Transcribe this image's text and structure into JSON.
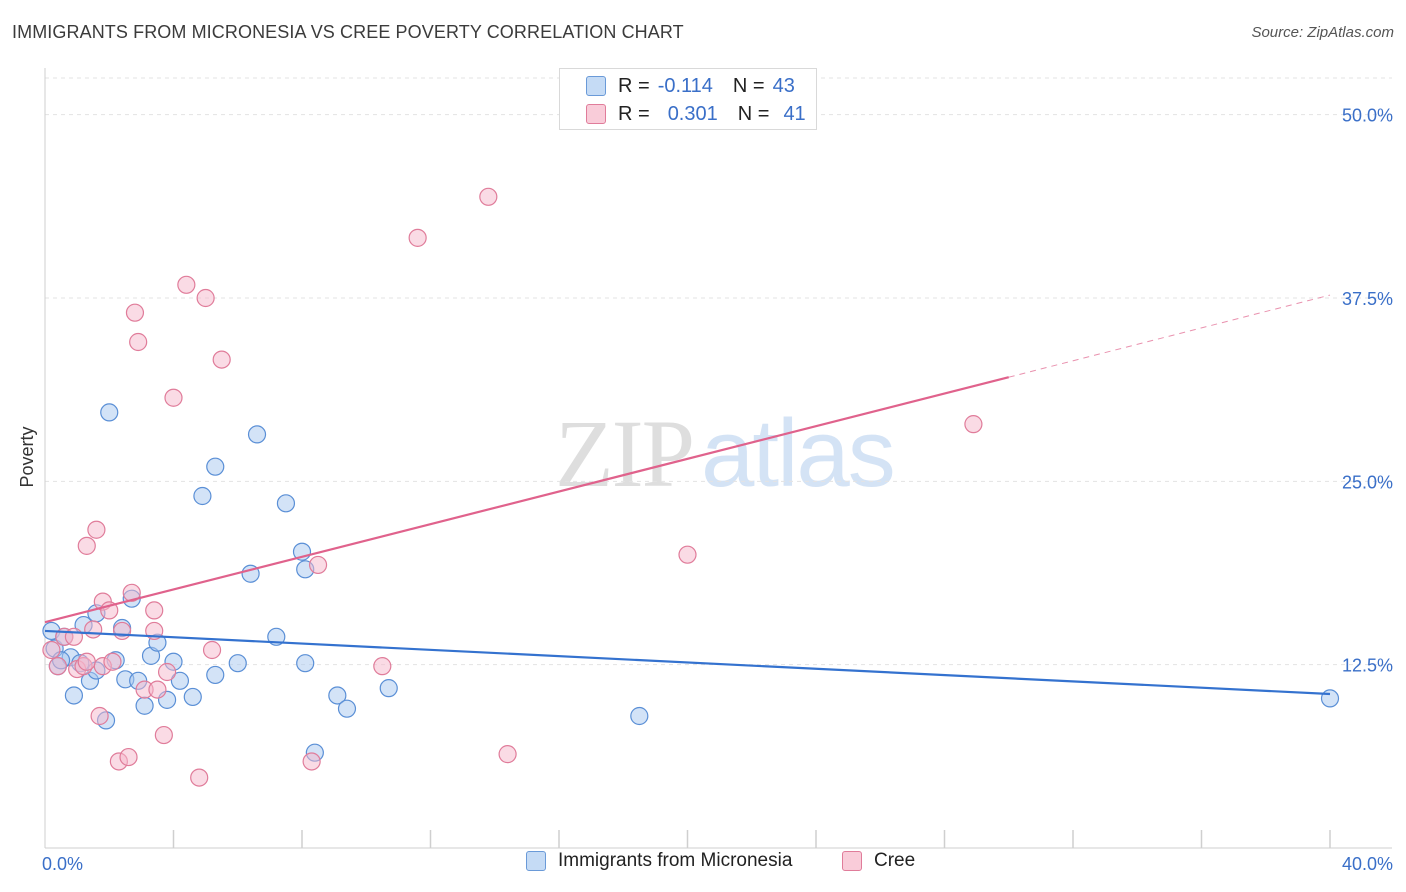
{
  "header": {
    "title": "IMMIGRANTS FROM MICRONESIA VS CREE POVERTY CORRELATION CHART",
    "source": "Source: ZipAtlas.com"
  },
  "watermark": {
    "zip": "ZIP",
    "atlas": "atlas"
  },
  "legend": {
    "rows": [
      {
        "r_label": "R =",
        "r_value": "-0.114",
        "n_label": "N =",
        "n_value": "43",
        "color": "#a8c8f0"
      },
      {
        "r_label": "R =",
        "r_value": "0.301",
        "n_label": "N =",
        "n_value": "41",
        "color": "#f5b8cb"
      }
    ]
  },
  "chart_data": {
    "type": "scatter",
    "title": "IMMIGRANTS FROM MICRONESIA VS CREE POVERTY CORRELATION CHART",
    "xlabel": "",
    "ylabel": "Poverty",
    "xlim": [
      0,
      40
    ],
    "ylim": [
      0,
      52.5
    ],
    "x_tick_labels": [
      "0.0%",
      "40.0%"
    ],
    "y_ticks": [
      12.5,
      25.0,
      37.5,
      50.0
    ],
    "y_tick_labels": [
      "12.5%",
      "25.0%",
      "37.5%",
      "50.0%"
    ],
    "grid": true,
    "series": [
      {
        "name": "Immigrants from Micronesia",
        "color": "#a8c8f0",
        "stroke": "#5a8fd6",
        "line_color": "#3472cf",
        "trend": {
          "x0": 0,
          "y0": 14.8,
          "x1": 40,
          "y1": 10.5
        },
        "points": [
          [
            0.2,
            14.8
          ],
          [
            0.3,
            13.6
          ],
          [
            0.4,
            12.4
          ],
          [
            0.6,
            14.4
          ],
          [
            0.8,
            13.0
          ],
          [
            0.9,
            10.4
          ],
          [
            1.1,
            12.6
          ],
          [
            1.2,
            15.2
          ],
          [
            1.4,
            11.4
          ],
          [
            1.6,
            12.1
          ],
          [
            1.6,
            16.0
          ],
          [
            1.9,
            8.7
          ],
          [
            2.0,
            29.7
          ],
          [
            2.2,
            12.8
          ],
          [
            2.4,
            15.0
          ],
          [
            2.5,
            11.5
          ],
          [
            2.7,
            17.0
          ],
          [
            2.9,
            11.4
          ],
          [
            3.1,
            9.7
          ],
          [
            3.3,
            13.1
          ],
          [
            3.5,
            14.0
          ],
          [
            3.8,
            10.1
          ],
          [
            4.0,
            12.7
          ],
          [
            4.2,
            11.4
          ],
          [
            4.6,
            10.3
          ],
          [
            4.9,
            24.0
          ],
          [
            5.3,
            26.0
          ],
          [
            5.3,
            11.8
          ],
          [
            6.0,
            12.6
          ],
          [
            6.6,
            28.2
          ],
          [
            7.2,
            14.4
          ],
          [
            7.5,
            23.5
          ],
          [
            8.0,
            20.2
          ],
          [
            8.1,
            19.0
          ],
          [
            8.1,
            12.6
          ],
          [
            8.4,
            6.5
          ],
          [
            9.1,
            10.4
          ],
          [
            9.4,
            9.5
          ],
          [
            10.7,
            10.9
          ],
          [
            18.5,
            9.0
          ],
          [
            40.0,
            10.2
          ],
          [
            6.4,
            18.7
          ],
          [
            0.5,
            12.8
          ]
        ]
      },
      {
        "name": "Cree",
        "color": "#f5b8cb",
        "stroke": "#e07c9a",
        "line_color": "#e0628c",
        "trend": {
          "x0": 0,
          "y0": 15.4,
          "x1": 30.0,
          "y1": 32.1
        },
        "trend_dashed": {
          "x0": 30.0,
          "y0": 32.1,
          "x1": 40,
          "y1": 37.7
        },
        "points": [
          [
            0.2,
            13.5
          ],
          [
            0.4,
            12.4
          ],
          [
            0.6,
            14.4
          ],
          [
            0.9,
            14.4
          ],
          [
            1.0,
            12.2
          ],
          [
            1.2,
            12.4
          ],
          [
            1.3,
            12.7
          ],
          [
            1.3,
            20.6
          ],
          [
            1.5,
            14.9
          ],
          [
            1.6,
            21.7
          ],
          [
            1.7,
            9.0
          ],
          [
            1.8,
            12.4
          ],
          [
            1.8,
            16.8
          ],
          [
            2.0,
            16.2
          ],
          [
            2.1,
            12.7
          ],
          [
            2.3,
            5.9
          ],
          [
            2.4,
            14.8
          ],
          [
            2.6,
            6.2
          ],
          [
            2.7,
            17.4
          ],
          [
            2.8,
            36.5
          ],
          [
            2.9,
            34.5
          ],
          [
            3.1,
            10.8
          ],
          [
            3.4,
            14.8
          ],
          [
            3.4,
            16.2
          ],
          [
            3.5,
            10.8
          ],
          [
            3.7,
            7.7
          ],
          [
            3.8,
            12.0
          ],
          [
            4.0,
            30.7
          ],
          [
            4.4,
            38.4
          ],
          [
            4.8,
            4.8
          ],
          [
            5.0,
            37.5
          ],
          [
            5.2,
            13.5
          ],
          [
            5.5,
            33.3
          ],
          [
            8.3,
            5.9
          ],
          [
            8.5,
            19.3
          ],
          [
            10.5,
            12.4
          ],
          [
            11.6,
            41.6
          ],
          [
            13.8,
            44.4
          ],
          [
            14.4,
            6.4
          ],
          [
            20.0,
            20.0
          ],
          [
            28.9,
            28.9
          ]
        ]
      }
    ],
    "legend_position": "bottom"
  }
}
